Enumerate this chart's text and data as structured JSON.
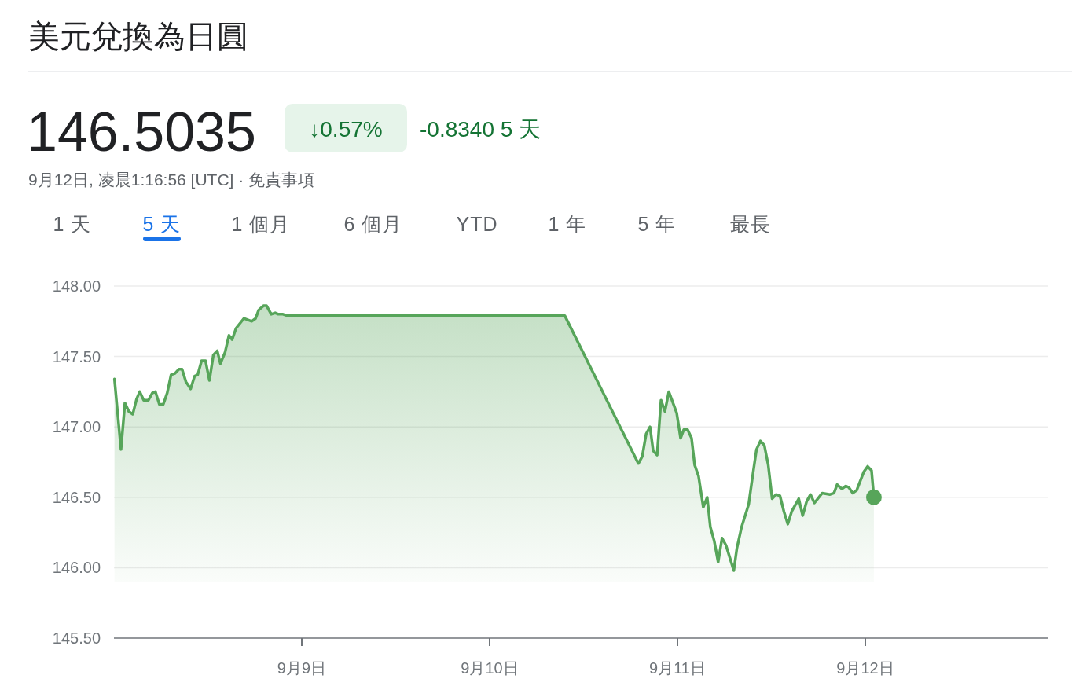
{
  "chart_data": {
    "type": "area",
    "title": "美元兌換為日圓",
    "annotations": [
      "146.5035",
      "↓0.57%",
      "-0.8340 5 天",
      "9月12日, 凌晨1:16:56 [UTC] · 免責事項",
      "1 天",
      "5 天",
      "1 個月",
      "6 個月",
      "YTD",
      "1 年",
      "5 年",
      "最長"
    ],
    "xlim": [
      "--09-08T00:00",
      "--09-12T23:18"
    ],
    "ylim": [
      145.5,
      148.0
    ],
    "xticks": [
      {
        "value": "--09-09",
        "label": "9月9日"
      },
      {
        "value": "--09-10",
        "label": "9月10日"
      },
      {
        "value": "--09-11",
        "label": "9月11日"
      },
      {
        "value": "--09-12",
        "label": "9月12日"
      }
    ],
    "yticks": [
      {
        "value": 145.5,
        "label": "145.50"
      },
      {
        "value": 146.0,
        "label": "146.00"
      },
      {
        "value": 146.5,
        "label": "146.50"
      },
      {
        "value": 147.0,
        "label": "147.00"
      },
      {
        "value": 147.5,
        "label": "147.50"
      },
      {
        "value": 148.0,
        "label": "148.00"
      }
    ],
    "grid": "y",
    "series": [
      {
        "color": "#57a55a",
        "x": [
          "--09-08T00:04",
          "--09-08T00:54",
          "--09-08T01:24",
          "--09-08T01:54",
          "--09-08T02:24",
          "--09-08T02:54",
          "--09-08T03:18",
          "--09-08T03:48",
          "--09-08T04:24",
          "--09-08T04:54",
          "--09-08T05:18",
          "--09-08T05:48",
          "--09-08T06:18",
          "--09-08T06:48",
          "--09-08T07:18",
          "--09-08T07:48",
          "--09-08T08:18",
          "--09-08T08:42",
          "--09-08T09:12",
          "--09-08T09:48",
          "--09-08T10:18",
          "--09-08T10:42",
          "--09-08T11:12",
          "--09-08T11:42",
          "--09-08T12:12",
          "--09-08T12:42",
          "--09-08T13:12",
          "--09-08T13:36",
          "--09-08T14:12",
          "--09-08T14:42",
          "--09-08T15:06",
          "--09-08T15:36",
          "--09-08T16:36",
          "--09-08T17:36",
          "--09-08T18:06",
          "--09-08T18:30",
          "--09-08T19:06",
          "--09-08T19:30",
          "--09-08T20:06",
          "--09-08T20:36",
          "--09-08T21:00",
          "--09-08T21:36",
          "--09-08T22:06",
          "--09-10T09:36",
          "--09-10T19:00",
          "--09-10T19:30",
          "--09-10T20:00",
          "--09-10T20:30",
          "--09-10T20:54",
          "--09-10T21:24",
          "--09-10T21:54",
          "--09-10T22:24",
          "--09-10T22:54",
          "--09-10T23:54",
          "--09-11T00:24",
          "--09-11T00:48",
          "--09-11T01:18",
          "--09-11T01:48",
          "--09-11T02:12",
          "--09-11T02:42",
          "--09-11T03:18",
          "--09-11T03:48",
          "--09-11T04:12",
          "--09-11T04:42",
          "--09-11T05:12",
          "--09-11T05:42",
          "--09-11T06:12",
          "--09-11T06:42",
          "--09-11T07:12",
          "--09-11T07:36",
          "--09-11T08:12",
          "--09-11T09:06",
          "--09-11T09:36",
          "--09-11T10:06",
          "--09-11T10:36",
          "--09-11T11:06",
          "--09-11T11:36",
          "--09-11T12:06",
          "--09-11T12:36",
          "--09-11T13:06",
          "--09-11T13:36",
          "--09-11T14:06",
          "--09-11T14:36",
          "--09-11T15:30",
          "--09-11T16:00",
          "--09-11T16:30",
          "--09-11T17:00",
          "--09-11T17:30",
          "--09-11T18:30",
          "--09-11T19:30",
          "--09-11T20:00",
          "--09-11T20:24",
          "--09-11T21:00",
          "--09-11T21:30",
          "--09-11T21:54",
          "--09-11T22:24",
          "--09-11T22:54",
          "--09-11T23:48",
          "--09-12T00:18",
          "--09-12T00:48",
          "--09-12T01:06"
        ],
        "values": [
          147.34,
          146.84,
          147.17,
          147.11,
          147.09,
          147.2,
          147.25,
          147.19,
          147.19,
          147.24,
          147.25,
          147.16,
          147.16,
          147.24,
          147.37,
          147.38,
          147.41,
          147.41,
          147.32,
          147.27,
          147.36,
          147.37,
          147.47,
          147.47,
          147.33,
          147.51,
          147.54,
          147.45,
          147.53,
          147.65,
          147.62,
          147.7,
          147.77,
          147.75,
          147.77,
          147.83,
          147.86,
          147.86,
          147.8,
          147.81,
          147.8,
          147.8,
          147.79,
          147.79,
          146.74,
          146.79,
          146.95,
          147.0,
          146.83,
          146.8,
          147.19,
          147.11,
          147.25,
          147.1,
          146.92,
          146.98,
          146.98,
          146.92,
          146.73,
          146.65,
          146.43,
          146.5,
          146.29,
          146.19,
          146.04,
          146.21,
          146.16,
          146.07,
          145.98,
          146.14,
          146.29,
          146.45,
          146.65,
          146.84,
          146.9,
          146.87,
          146.73,
          146.49,
          146.52,
          146.51,
          146.4,
          146.31,
          146.4,
          146.49,
          146.37,
          146.47,
          146.52,
          146.46,
          146.53,
          146.52,
          146.53,
          146.59,
          146.56,
          146.58,
          146.57,
          146.53,
          146.55,
          146.68,
          146.72,
          146.69,
          146.5
        ]
      },
      {
        "type": "scatter",
        "color": "#57a55a",
        "x": [
          "--09-12T01:06"
        ],
        "values": [
          146.5
        ]
      }
    ]
  }
}
